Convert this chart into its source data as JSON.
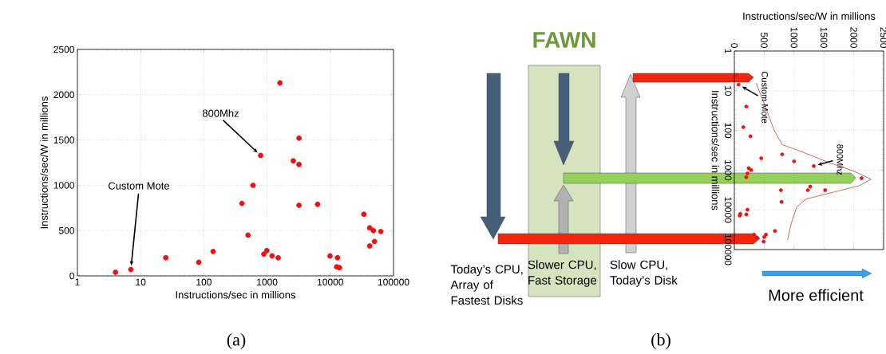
{
  "chart_data": [
    {
      "type": "scatter",
      "xlabel": "Instructions/sec in millions",
      "ylabel": "Instructions/sec/W in millions",
      "log": "x",
      "grid": true,
      "marker": "circle",
      "color": "#ee1111",
      "x": [
        4,
        7,
        25,
        83,
        140,
        400,
        500,
        600,
        790,
        890,
        990,
        1200,
        1500,
        1600,
        2600,
        3200,
        3200,
        3200,
        6300,
        9900,
        13000,
        12600,
        14000,
        34000,
        42000,
        48000,
        63000,
        42000,
        50000
      ],
      "values": [
        40,
        70,
        200,
        150,
        270,
        800,
        450,
        1000,
        1330,
        240,
        280,
        220,
        200,
        2130,
        1270,
        1520,
        1230,
        780,
        790,
        220,
        200,
        100,
        90,
        680,
        530,
        500,
        490,
        330,
        380
      ],
      "xlim": [
        1,
        100000
      ],
      "xticks": [
        1,
        10,
        100,
        1000,
        10000,
        100000
      ],
      "ylim": [
        0,
        2500
      ],
      "yticks": [
        0,
        500,
        1000,
        1500,
        2000,
        2500
      ],
      "annotations": [
        {
          "text": "Custom Mote",
          "x": 7,
          "y": 70
        },
        {
          "text": "800Mhz",
          "x": 790,
          "y": 1330
        },
        "(a)"
      ]
    },
    {
      "type": "scatter",
      "xlabel": "Instructions/sec/W in millions",
      "ylabel": "Instructions/sec in millions",
      "log": "y",
      "grid": true,
      "series": [
        {
          "type": "scatter",
          "marker": "circle",
          "color": "#ee1111",
          "x": [
            40,
            70,
            200,
            150,
            270,
            800,
            450,
            1000,
            1330,
            240,
            280,
            220,
            200,
            2130,
            1270,
            1520,
            1230,
            780,
            790,
            220,
            200,
            100,
            90,
            680,
            530,
            500,
            490,
            330,
            380
          ],
          "values": [
            4,
            7,
            25,
            83,
            140,
            400,
            500,
            600,
            790,
            890,
            990,
            1200,
            1500,
            1600,
            2600,
            3200,
            3200,
            3200,
            6300,
            9900,
            13000,
            12600,
            14000,
            34000,
            42000,
            48000,
            63000,
            42000,
            50000
          ]
        },
        {
          "type": "line",
          "color": "#b8321c",
          "x": [
            365,
            498,
            667,
            801,
            1112,
            1557,
            2002,
            2291,
            2091,
            1557,
            1201,
            1045,
            956,
            890
          ],
          "values": [
            6.4,
            21,
            98,
            229,
            336,
            621,
            1064,
            1686,
            2473,
            3920,
            5330,
            8450,
            21200,
            57500
          ]
        }
      ],
      "xlim": [
        0,
        2500
      ],
      "xticks": [
        0,
        500,
        1000,
        1500,
        2000,
        2500
      ],
      "ylim": [
        100000,
        1
      ],
      "yticks": [
        1,
        10,
        100,
        1000,
        10000,
        100000
      ],
      "annotations": [
        {
          "text": "Custom Mote",
          "x": 70,
          "y": 7
        },
        {
          "text": "800Mhz",
          "x": 1330,
          "y": 790
        },
        "FAWN",
        "Today’s CPU, Array of Fastest Disks",
        "Slower CPU, Fast Storage",
        "Slow CPU, Today’s Disk",
        "More efficient",
        "(b)"
      ]
    }
  ]
}
